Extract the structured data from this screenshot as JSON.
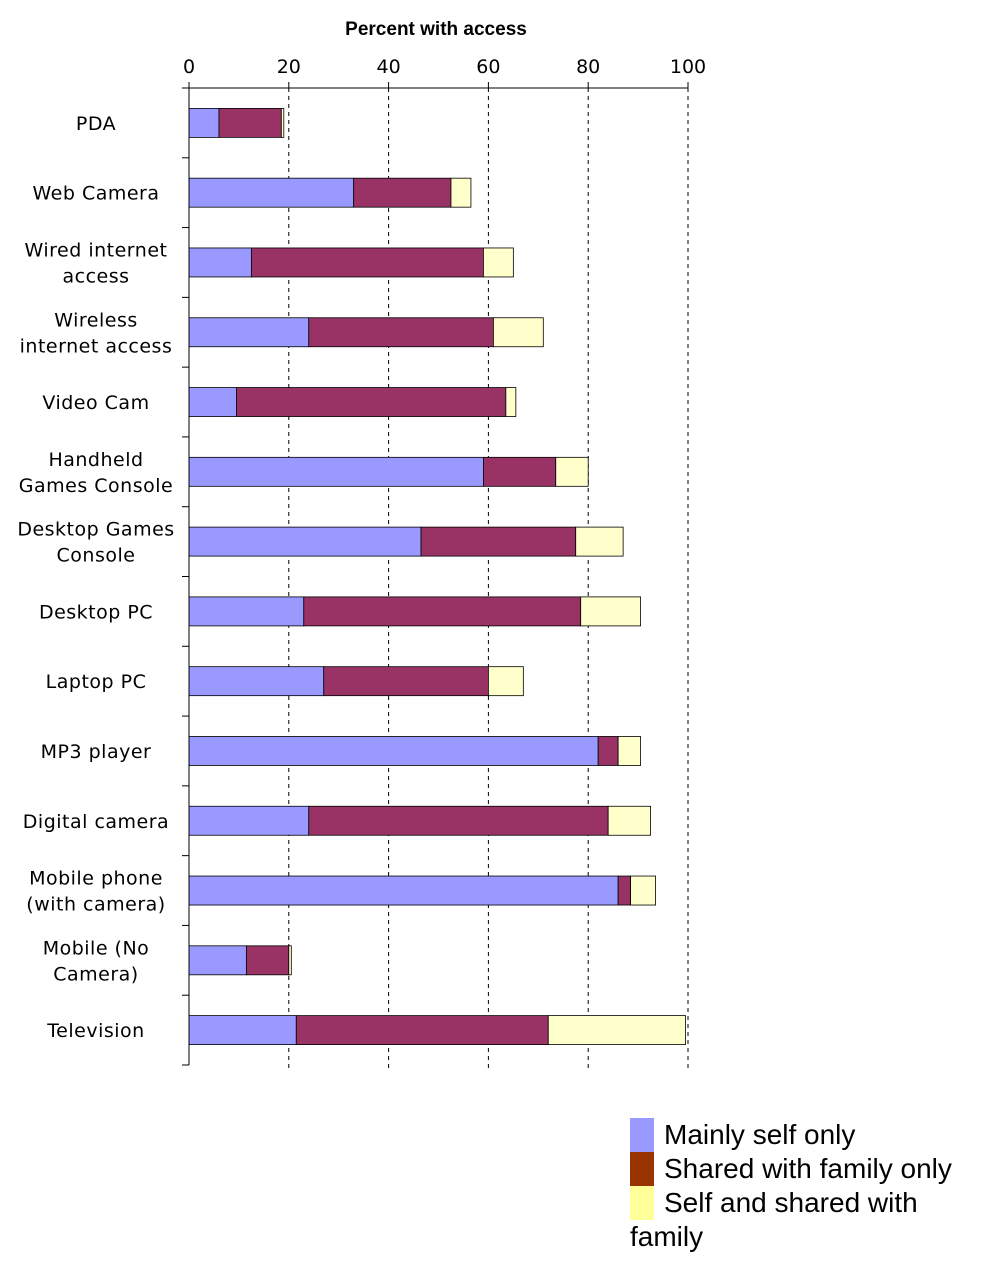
{
  "chart_data": {
    "type": "bar",
    "orientation": "horizontal",
    "stacked": true,
    "title": "Percent with access",
    "xlim": [
      0,
      100
    ],
    "xticks": [
      0,
      20,
      40,
      60,
      80,
      100
    ],
    "grid": "dashed vertical at major ticks",
    "legend_position": "bottom-right",
    "categories": [
      "PDA",
      "Web Camera",
      "Wired internet access",
      "Wireless internet access",
      "Video Cam",
      "Handheld Games Console",
      "Desktop Games Console",
      "Desktop PC",
      "Laptop PC",
      "MP3 player",
      "Digital camera",
      "Mobile phone (with camera)",
      "Mobile (No Camera)",
      "Television"
    ],
    "category_lines": [
      [
        "PDA"
      ],
      [
        "Web Camera"
      ],
      [
        "Wired internet",
        "access"
      ],
      [
        "Wireless",
        "internet access"
      ],
      [
        "Video Cam"
      ],
      [
        "Handheld",
        "Games Console"
      ],
      [
        "Desktop Games",
        "Console"
      ],
      [
        "Desktop PC"
      ],
      [
        "Laptop PC"
      ],
      [
        "MP3 player"
      ],
      [
        "Digital camera"
      ],
      [
        "Mobile phone",
        "(with camera)"
      ],
      [
        "Mobile (No",
        "Camera)"
      ],
      [
        "Television"
      ]
    ],
    "series": [
      {
        "name": "Mainly self only",
        "color": "#9999ff",
        "values": [
          6,
          33,
          12.5,
          24,
          9.5,
          59,
          46.5,
          23,
          27,
          82,
          24,
          86,
          11.5,
          21.5
        ]
      },
      {
        "name": "Shared with family only",
        "color": "#993366",
        "values": [
          12.5,
          19.5,
          46.5,
          37,
          54,
          14.5,
          31,
          55.5,
          33,
          4,
          60,
          2.5,
          8.5,
          50.5
        ]
      },
      {
        "name": "Self and shared with family",
        "color": "#ffffcc",
        "values": [
          0.5,
          4,
          6,
          10,
          2,
          6.5,
          9.5,
          12,
          7,
          4.5,
          8.5,
          5,
          0.5,
          27.5
        ]
      }
    ]
  },
  "legend": {
    "items": [
      {
        "label": "Mainly self only",
        "color": "#9999ff"
      },
      {
        "label": "Shared with family only",
        "color": "#993300"
      },
      {
        "label": "Self and shared with",
        "color": "#ffff99"
      }
    ],
    "wrap_text": "family"
  }
}
